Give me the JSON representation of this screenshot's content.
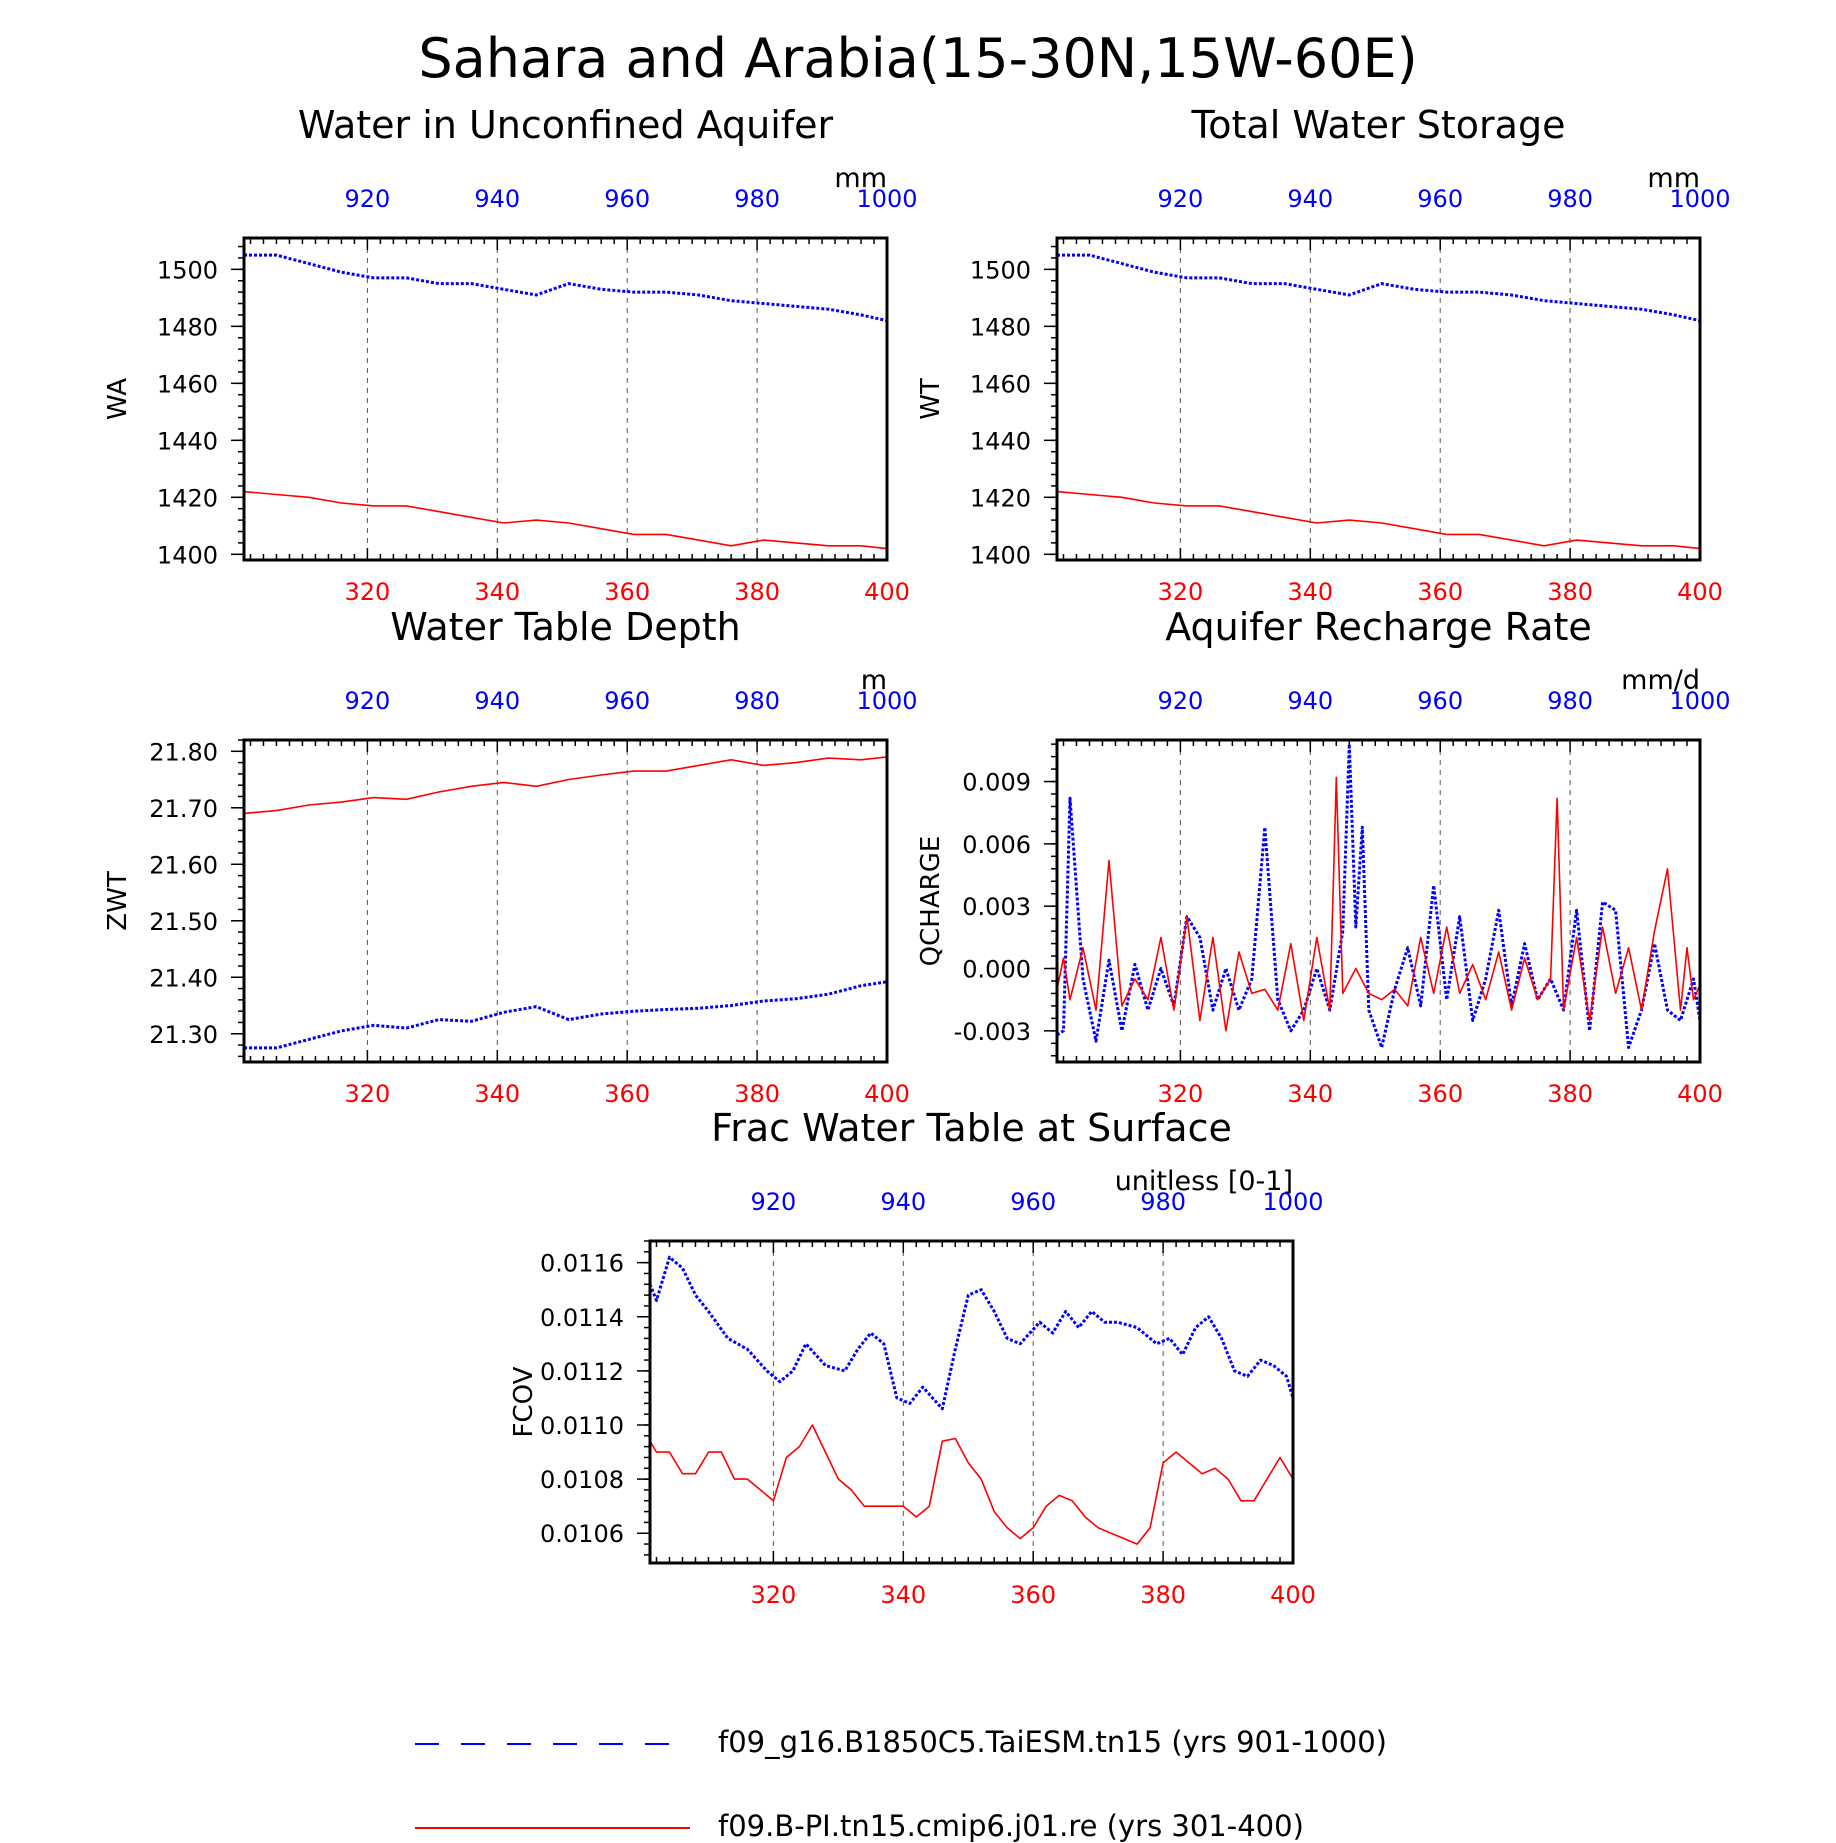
{
  "figure_title": "Sahara and Arabia(15-30N,15W-60E)",
  "colors": {
    "bottom_axis": "#ff0000",
    "top_axis": "#0000ff",
    "axis": "#000000",
    "series_blue": "#0000ff",
    "series_red": "#ff0000"
  },
  "legend": {
    "items": [
      {
        "label": "f09_g16.B1850C5.TaiESM.tn15 (yrs 901-1000)",
        "color": "#0000ff",
        "style": "dashed"
      },
      {
        "label": "f09.B-PI.tn15.cmip6.j01.re (yrs 301-400)",
        "color": "#ff0000",
        "style": "solid"
      }
    ]
  },
  "chart_data": [
    {
      "type": "line",
      "title": "Water in Unconfined Aquifer",
      "units": "mm",
      "ylabel": "WA",
      "xlim_bottom": [
        301,
        400
      ],
      "xlim_top": [
        901,
        1000
      ],
      "ylim": [
        1398,
        1511
      ],
      "yticks": [
        1400,
        1420,
        1440,
        1460,
        1480,
        1500
      ],
      "ytick_labels": [
        "1400",
        "1420",
        "1440",
        "1460",
        "1480",
        "1500"
      ],
      "xticks_bottom": [
        "320",
        "340",
        "360",
        "380",
        "400"
      ],
      "xticks_top": [
        "920",
        "940",
        "960",
        "980",
        "1000"
      ],
      "grid": "vertical dashed",
      "series": [
        {
          "axis": "top",
          "color": "#0000ff",
          "style": "dotted",
          "x": [
            901,
            906,
            911,
            916,
            921,
            926,
            931,
            936,
            941,
            946,
            951,
            956,
            961,
            966,
            971,
            976,
            981,
            986,
            991,
            996,
            1000
          ],
          "y": [
            1505,
            1505,
            1502,
            1499,
            1497,
            1497,
            1495,
            1495,
            1493,
            1491,
            1495,
            1493,
            1492,
            1492,
            1491,
            1489,
            1488,
            1487,
            1486,
            1484,
            1482
          ]
        },
        {
          "axis": "bottom",
          "color": "#ff0000",
          "style": "solid",
          "x": [
            301,
            306,
            311,
            316,
            321,
            326,
            331,
            336,
            341,
            346,
            351,
            356,
            361,
            366,
            371,
            376,
            381,
            386,
            391,
            396,
            400
          ],
          "y": [
            1422,
            1421,
            1420,
            1418,
            1417,
            1417,
            1415,
            1413,
            1411,
            1412,
            1411,
            1409,
            1407,
            1407,
            1405,
            1403,
            1405,
            1404,
            1403,
            1403,
            1402
          ]
        }
      ]
    },
    {
      "type": "line",
      "title": "Total Water Storage",
      "units": "mm",
      "ylabel": "WT",
      "xlim_bottom": [
        301,
        400
      ],
      "xlim_top": [
        901,
        1000
      ],
      "ylim": [
        1398,
        1511
      ],
      "yticks": [
        1400,
        1420,
        1440,
        1460,
        1480,
        1500
      ],
      "ytick_labels": [
        "1400",
        "1420",
        "1440",
        "1460",
        "1480",
        "1500"
      ],
      "xticks_bottom": [
        "320",
        "340",
        "360",
        "380",
        "400"
      ],
      "xticks_top": [
        "920",
        "940",
        "960",
        "980",
        "1000"
      ],
      "grid": "vertical dashed",
      "series": [
        {
          "axis": "top",
          "color": "#0000ff",
          "style": "dotted",
          "x": [
            901,
            906,
            911,
            916,
            921,
            926,
            931,
            936,
            941,
            946,
            951,
            956,
            961,
            966,
            971,
            976,
            981,
            986,
            991,
            996,
            1000
          ],
          "y": [
            1505,
            1505,
            1502,
            1499,
            1497,
            1497,
            1495,
            1495,
            1493,
            1491,
            1495,
            1493,
            1492,
            1492,
            1491,
            1489,
            1488,
            1487,
            1486,
            1484,
            1482
          ]
        },
        {
          "axis": "bottom",
          "color": "#ff0000",
          "style": "solid",
          "x": [
            301,
            306,
            311,
            316,
            321,
            326,
            331,
            336,
            341,
            346,
            351,
            356,
            361,
            366,
            371,
            376,
            381,
            386,
            391,
            396,
            400
          ],
          "y": [
            1422,
            1421,
            1420,
            1418,
            1417,
            1417,
            1415,
            1413,
            1411,
            1412,
            1411,
            1409,
            1407,
            1407,
            1405,
            1403,
            1405,
            1404,
            1403,
            1403,
            1402
          ]
        }
      ]
    },
    {
      "type": "line",
      "title": "Water Table Depth",
      "units": "m",
      "ylabel": "ZWT",
      "xlim_bottom": [
        301,
        400
      ],
      "xlim_top": [
        901,
        1000
      ],
      "ylim": [
        21.25,
        21.82
      ],
      "yticks": [
        21.3,
        21.4,
        21.5,
        21.6,
        21.7,
        21.8
      ],
      "ytick_labels": [
        "21.30",
        "21.40",
        "21.50",
        "21.60",
        "21.70",
        "21.80"
      ],
      "xticks_bottom": [
        "320",
        "340",
        "360",
        "380",
        "400"
      ],
      "xticks_top": [
        "920",
        "940",
        "960",
        "980",
        "1000"
      ],
      "grid": "vertical dashed",
      "series": [
        {
          "axis": "bottom",
          "color": "#ff0000",
          "style": "solid",
          "x": [
            301,
            306,
            311,
            316,
            321,
            326,
            331,
            336,
            341,
            346,
            351,
            356,
            361,
            366,
            371,
            376,
            381,
            386,
            391,
            396,
            400
          ],
          "y": [
            21.69,
            21.695,
            21.705,
            21.71,
            21.718,
            21.715,
            21.728,
            21.738,
            21.745,
            21.738,
            21.75,
            21.758,
            21.765,
            21.765,
            21.775,
            21.785,
            21.775,
            21.78,
            21.788,
            21.785,
            21.79
          ]
        },
        {
          "axis": "top",
          "color": "#0000ff",
          "style": "dotted",
          "x": [
            901,
            906,
            911,
            916,
            921,
            926,
            931,
            936,
            941,
            946,
            951,
            956,
            961,
            966,
            971,
            976,
            981,
            986,
            991,
            996,
            1000
          ],
          "y": [
            21.275,
            21.275,
            21.29,
            21.305,
            21.315,
            21.31,
            21.325,
            21.322,
            21.338,
            21.348,
            21.325,
            21.335,
            21.34,
            21.343,
            21.345,
            21.35,
            21.358,
            21.362,
            21.37,
            21.385,
            21.392
          ]
        }
      ]
    },
    {
      "type": "line",
      "title": "Aquifer Recharge Rate",
      "units": "mm/d",
      "ylabel": "QCHARGE",
      "xlim_bottom": [
        301,
        400
      ],
      "xlim_top": [
        901,
        1000
      ],
      "ylim": [
        -0.0045,
        0.011
      ],
      "yticks": [
        -0.003,
        0.0,
        0.003,
        0.006,
        0.009
      ],
      "ytick_labels": [
        "-0.003",
        "0.000",
        "0.003",
        "0.006",
        "0.009"
      ],
      "xticks_bottom": [
        "320",
        "340",
        "360",
        "380",
        "400"
      ],
      "xticks_top": [
        "920",
        "940",
        "960",
        "980",
        "1000"
      ],
      "grid": "vertical dashed",
      "series": [
        {
          "axis": "top",
          "color": "#0000ff",
          "style": "dotted",
          "x": [
            901,
            902,
            903,
            905,
            907,
            909,
            911,
            913,
            915,
            917,
            919,
            921,
            923,
            925,
            927,
            929,
            931,
            933,
            935,
            937,
            939,
            941,
            943,
            945,
            946,
            947,
            948,
            949,
            951,
            953,
            955,
            957,
            959,
            961,
            963,
            965,
            967,
            969,
            971,
            973,
            975,
            977,
            979,
            981,
            983,
            985,
            987,
            989,
            991,
            993,
            995,
            997,
            999,
            1000
          ],
          "y": [
            -0.0032,
            -0.003,
            0.0082,
            -0.0005,
            -0.0035,
            0.0004,
            -0.003,
            0.0002,
            -0.002,
            0.0,
            -0.0018,
            0.0025,
            0.0015,
            -0.002,
            0.0,
            -0.002,
            -0.0005,
            0.0068,
            -0.0015,
            -0.003,
            -0.002,
            0.0,
            -0.002,
            0.0018,
            0.0108,
            0.002,
            0.0068,
            -0.002,
            -0.0038,
            -0.001,
            0.001,
            -0.0018,
            0.004,
            -0.0015,
            0.0025,
            -0.0025,
            -0.0005,
            0.0028,
            -0.0018,
            0.0012,
            -0.0015,
            -0.0005,
            -0.002,
            0.0028,
            -0.003,
            0.0032,
            0.0028,
            -0.0038,
            -0.002,
            0.0012,
            -0.002,
            -0.0025,
            -0.0005,
            -0.0025
          ]
        },
        {
          "axis": "bottom",
          "color": "#ff0000",
          "style": "solid",
          "x": [
            301,
            302,
            303,
            305,
            307,
            309,
            311,
            313,
            315,
            317,
            319,
            321,
            323,
            325,
            327,
            329,
            331,
            333,
            335,
            337,
            339,
            341,
            343,
            344,
            345,
            347,
            349,
            351,
            353,
            355,
            357,
            359,
            361,
            363,
            365,
            367,
            369,
            371,
            373,
            375,
            377,
            378,
            379,
            381,
            383,
            385,
            387,
            389,
            391,
            393,
            395,
            397,
            398,
            399,
            400
          ],
          "y": [
            -0.001,
            0.0005,
            -0.0015,
            0.001,
            -0.002,
            0.0052,
            -0.0018,
            -0.0005,
            -0.0015,
            0.0015,
            -0.002,
            0.0025,
            -0.0025,
            0.0015,
            -0.003,
            0.0008,
            -0.0012,
            -0.001,
            -0.002,
            0.0012,
            -0.0025,
            0.0015,
            -0.002,
            0.0092,
            -0.0012,
            0.0,
            -0.0012,
            -0.0015,
            -0.001,
            -0.0018,
            0.0015,
            -0.0012,
            0.002,
            -0.0012,
            0.0002,
            -0.0015,
            0.0008,
            -0.002,
            0.0005,
            -0.0015,
            -0.0005,
            0.0082,
            -0.002,
            0.0015,
            -0.0025,
            0.002,
            -0.0012,
            0.001,
            -0.002,
            0.0018,
            0.0048,
            -0.002,
            0.001,
            -0.0015,
            -0.0008
          ]
        }
      ]
    },
    {
      "type": "line",
      "title": "Frac Water Table at Surface",
      "units": "unitless [0-1]",
      "ylabel": "FCOV",
      "xlim_bottom": [
        301,
        400
      ],
      "xlim_top": [
        901,
        1000
      ],
      "ylim": [
        0.01049,
        0.01168
      ],
      "yticks": [
        0.0106,
        0.0108,
        0.011,
        0.0112,
        0.0114,
        0.0116
      ],
      "ytick_labels": [
        "0.0106",
        "0.0108",
        "0.0110",
        "0.0112",
        "0.0114",
        "0.0116"
      ],
      "xticks_bottom": [
        "320",
        "340",
        "360",
        "380",
        "400"
      ],
      "xticks_top": [
        "920",
        "940",
        "960",
        "980",
        "1000"
      ],
      "grid": "vertical dashed",
      "series": [
        {
          "axis": "top",
          "color": "#0000ff",
          "style": "dotted",
          "x": [
            901,
            902,
            904,
            906,
            908,
            910,
            913,
            916,
            919,
            921,
            923,
            925,
            928,
            931,
            933,
            935,
            937,
            939,
            941,
            943,
            946,
            948,
            950,
            952,
            954,
            956,
            958,
            961,
            963,
            965,
            967,
            969,
            971,
            973,
            976,
            979,
            981,
            983,
            985,
            987,
            989,
            991,
            993,
            995,
            997,
            999,
            1000
          ],
          "y": [
            0.01152,
            0.01146,
            0.01162,
            0.01158,
            0.01148,
            0.01142,
            0.01132,
            0.01128,
            0.0112,
            0.01116,
            0.0112,
            0.0113,
            0.01122,
            0.0112,
            0.01128,
            0.01134,
            0.0113,
            0.0111,
            0.01108,
            0.01114,
            0.01106,
            0.01128,
            0.01148,
            0.0115,
            0.01142,
            0.01132,
            0.0113,
            0.01138,
            0.01134,
            0.01142,
            0.01136,
            0.01142,
            0.01138,
            0.01138,
            0.01136,
            0.0113,
            0.01132,
            0.01126,
            0.01136,
            0.0114,
            0.01132,
            0.0112,
            0.01118,
            0.01124,
            0.01122,
            0.01118,
            0.0111
          ]
        },
        {
          "axis": "bottom",
          "color": "#ff0000",
          "style": "solid",
          "x": [
            301,
            302,
            304,
            306,
            308,
            310,
            312,
            314,
            316,
            318,
            320,
            322,
            324,
            326,
            328,
            330,
            332,
            334,
            336,
            338,
            340,
            342,
            344,
            346,
            348,
            350,
            352,
            354,
            356,
            358,
            360,
            362,
            364,
            366,
            368,
            370,
            372,
            374,
            376,
            378,
            380,
            382,
            384,
            386,
            388,
            390,
            392,
            394,
            396,
            398,
            400
          ],
          "y": [
            0.01094,
            0.0109,
            0.0109,
            0.01082,
            0.01082,
            0.0109,
            0.0109,
            0.0108,
            0.0108,
            0.01076,
            0.01072,
            0.01088,
            0.01092,
            0.011,
            0.0109,
            0.0108,
            0.01076,
            0.0107,
            0.0107,
            0.0107,
            0.0107,
            0.01066,
            0.0107,
            0.01094,
            0.01095,
            0.01086,
            0.0108,
            0.01068,
            0.01062,
            0.01058,
            0.01062,
            0.0107,
            0.01074,
            0.01072,
            0.01066,
            0.01062,
            0.0106,
            0.01058,
            0.01056,
            0.01062,
            0.01086,
            0.0109,
            0.01086,
            0.01082,
            0.01084,
            0.0108,
            0.01072,
            0.01072,
            0.0108,
            0.01088,
            0.0108
          ]
        }
      ]
    }
  ]
}
